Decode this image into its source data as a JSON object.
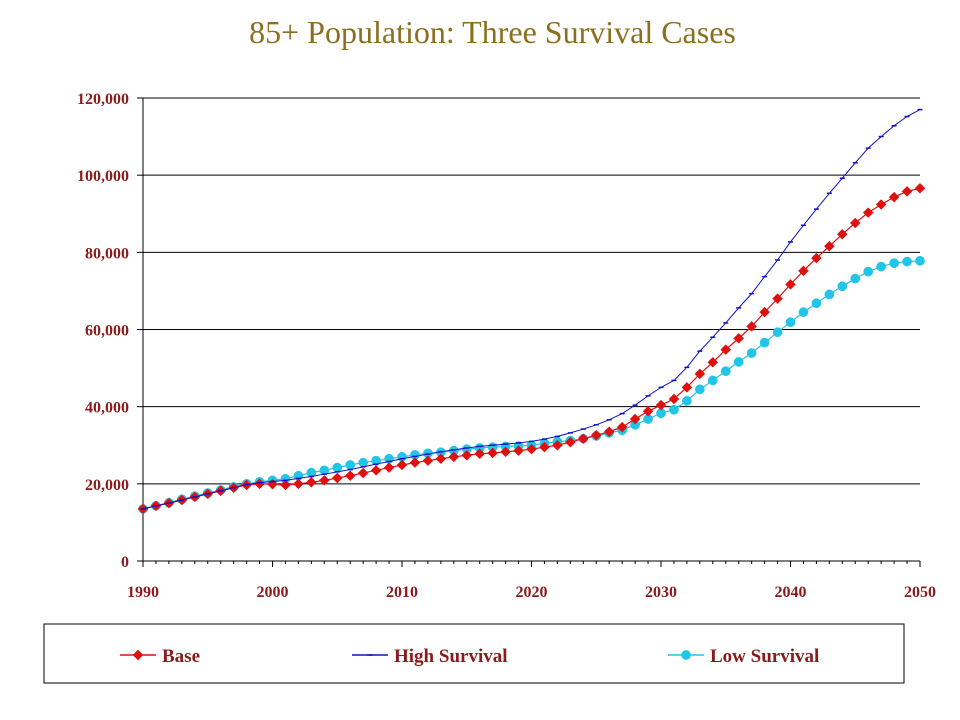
{
  "chart_data": {
    "type": "line",
    "title": "85+ Population: Three Survival Cases",
    "xlabel": "",
    "ylabel": "",
    "xlim": [
      1990,
      2050
    ],
    "ylim": [
      0,
      120000
    ],
    "x_ticks": [
      "1990",
      "2000",
      "2010",
      "2020",
      "2030",
      "2040",
      "2050"
    ],
    "y_ticks": [
      "0",
      "20,000",
      "40,000",
      "60,000",
      "80,000",
      "100,000",
      "120,000"
    ],
    "grid": "horizontal",
    "legend_position": "bottom",
    "colors": {
      "base": "#E01010",
      "high": "#1010C8",
      "low": "#22C4E8",
      "text": "#8B1A1A",
      "title": "#8B6F1E"
    },
    "x": [
      1990,
      1991,
      1992,
      1993,
      1994,
      1995,
      1996,
      1997,
      1998,
      1999,
      2000,
      2001,
      2002,
      2003,
      2004,
      2005,
      2006,
      2007,
      2008,
      2009,
      2010,
      2011,
      2012,
      2013,
      2014,
      2015,
      2016,
      2017,
      2018,
      2019,
      2020,
      2021,
      2022,
      2023,
      2024,
      2025,
      2026,
      2027,
      2028,
      2029,
      2030,
      2031,
      2032,
      2033,
      2034,
      2035,
      2036,
      2037,
      2038,
      2039,
      2040,
      2041,
      2042,
      2043,
      2044,
      2045,
      2046,
      2047,
      2048,
      2049,
      2050
    ],
    "series": [
      {
        "name": "Base",
        "values": [
          13500,
          14300,
          15000,
          15800,
          16600,
          17400,
          18200,
          19000,
          19700,
          20000,
          19900,
          19700,
          20000,
          20400,
          20900,
          21500,
          22100,
          22800,
          23500,
          24200,
          24900,
          25500,
          26000,
          26500,
          27000,
          27400,
          27800,
          28000,
          28300,
          28600,
          29000,
          29500,
          30000,
          30800,
          31700,
          32600,
          33500,
          34700,
          36800,
          38800,
          40400,
          42000,
          45000,
          48500,
          51500,
          54800,
          57700,
          60800,
          64500,
          68000,
          71700,
          75200,
          78500,
          81600,
          84700,
          87600,
          90300,
          92400,
          94300,
          95800,
          96600
        ]
      },
      {
        "name": "High Survival",
        "values": [
          13500,
          14300,
          15000,
          15800,
          16600,
          17400,
          18200,
          19000,
          19800,
          20300,
          20600,
          20900,
          21400,
          21900,
          22500,
          23100,
          23700,
          24400,
          25100,
          25800,
          26500,
          27100,
          27700,
          28300,
          28800,
          29300,
          29700,
          30000,
          30300,
          30600,
          31000,
          31600,
          32300,
          33200,
          34200,
          35300,
          36600,
          38200,
          40400,
          42800,
          45000,
          46800,
          50200,
          54400,
          58000,
          61700,
          65600,
          69300,
          73700,
          78000,
          82700,
          87000,
          91200,
          95300,
          99200,
          103200,
          107000,
          110000,
          112800,
          115200,
          117000
        ]
      },
      {
        "name": "Low Survival",
        "values": [
          13500,
          14300,
          15100,
          16000,
          16800,
          17600,
          18400,
          19200,
          20000,
          20500,
          20900,
          21300,
          22100,
          22900,
          23500,
          24200,
          24900,
          25500,
          26000,
          26500,
          27000,
          27500,
          27900,
          28200,
          28600,
          29000,
          29300,
          29500,
          29700,
          29800,
          30000,
          30500,
          30900,
          31200,
          31700,
          32400,
          33200,
          33900,
          35300,
          36800,
          38300,
          39200,
          41500,
          44500,
          46800,
          49200,
          51600,
          53900,
          56600,
          59300,
          61900,
          64500,
          66800,
          69100,
          71200,
          73200,
          75000,
          76300,
          77200,
          77600,
          77800
        ]
      }
    ]
  }
}
